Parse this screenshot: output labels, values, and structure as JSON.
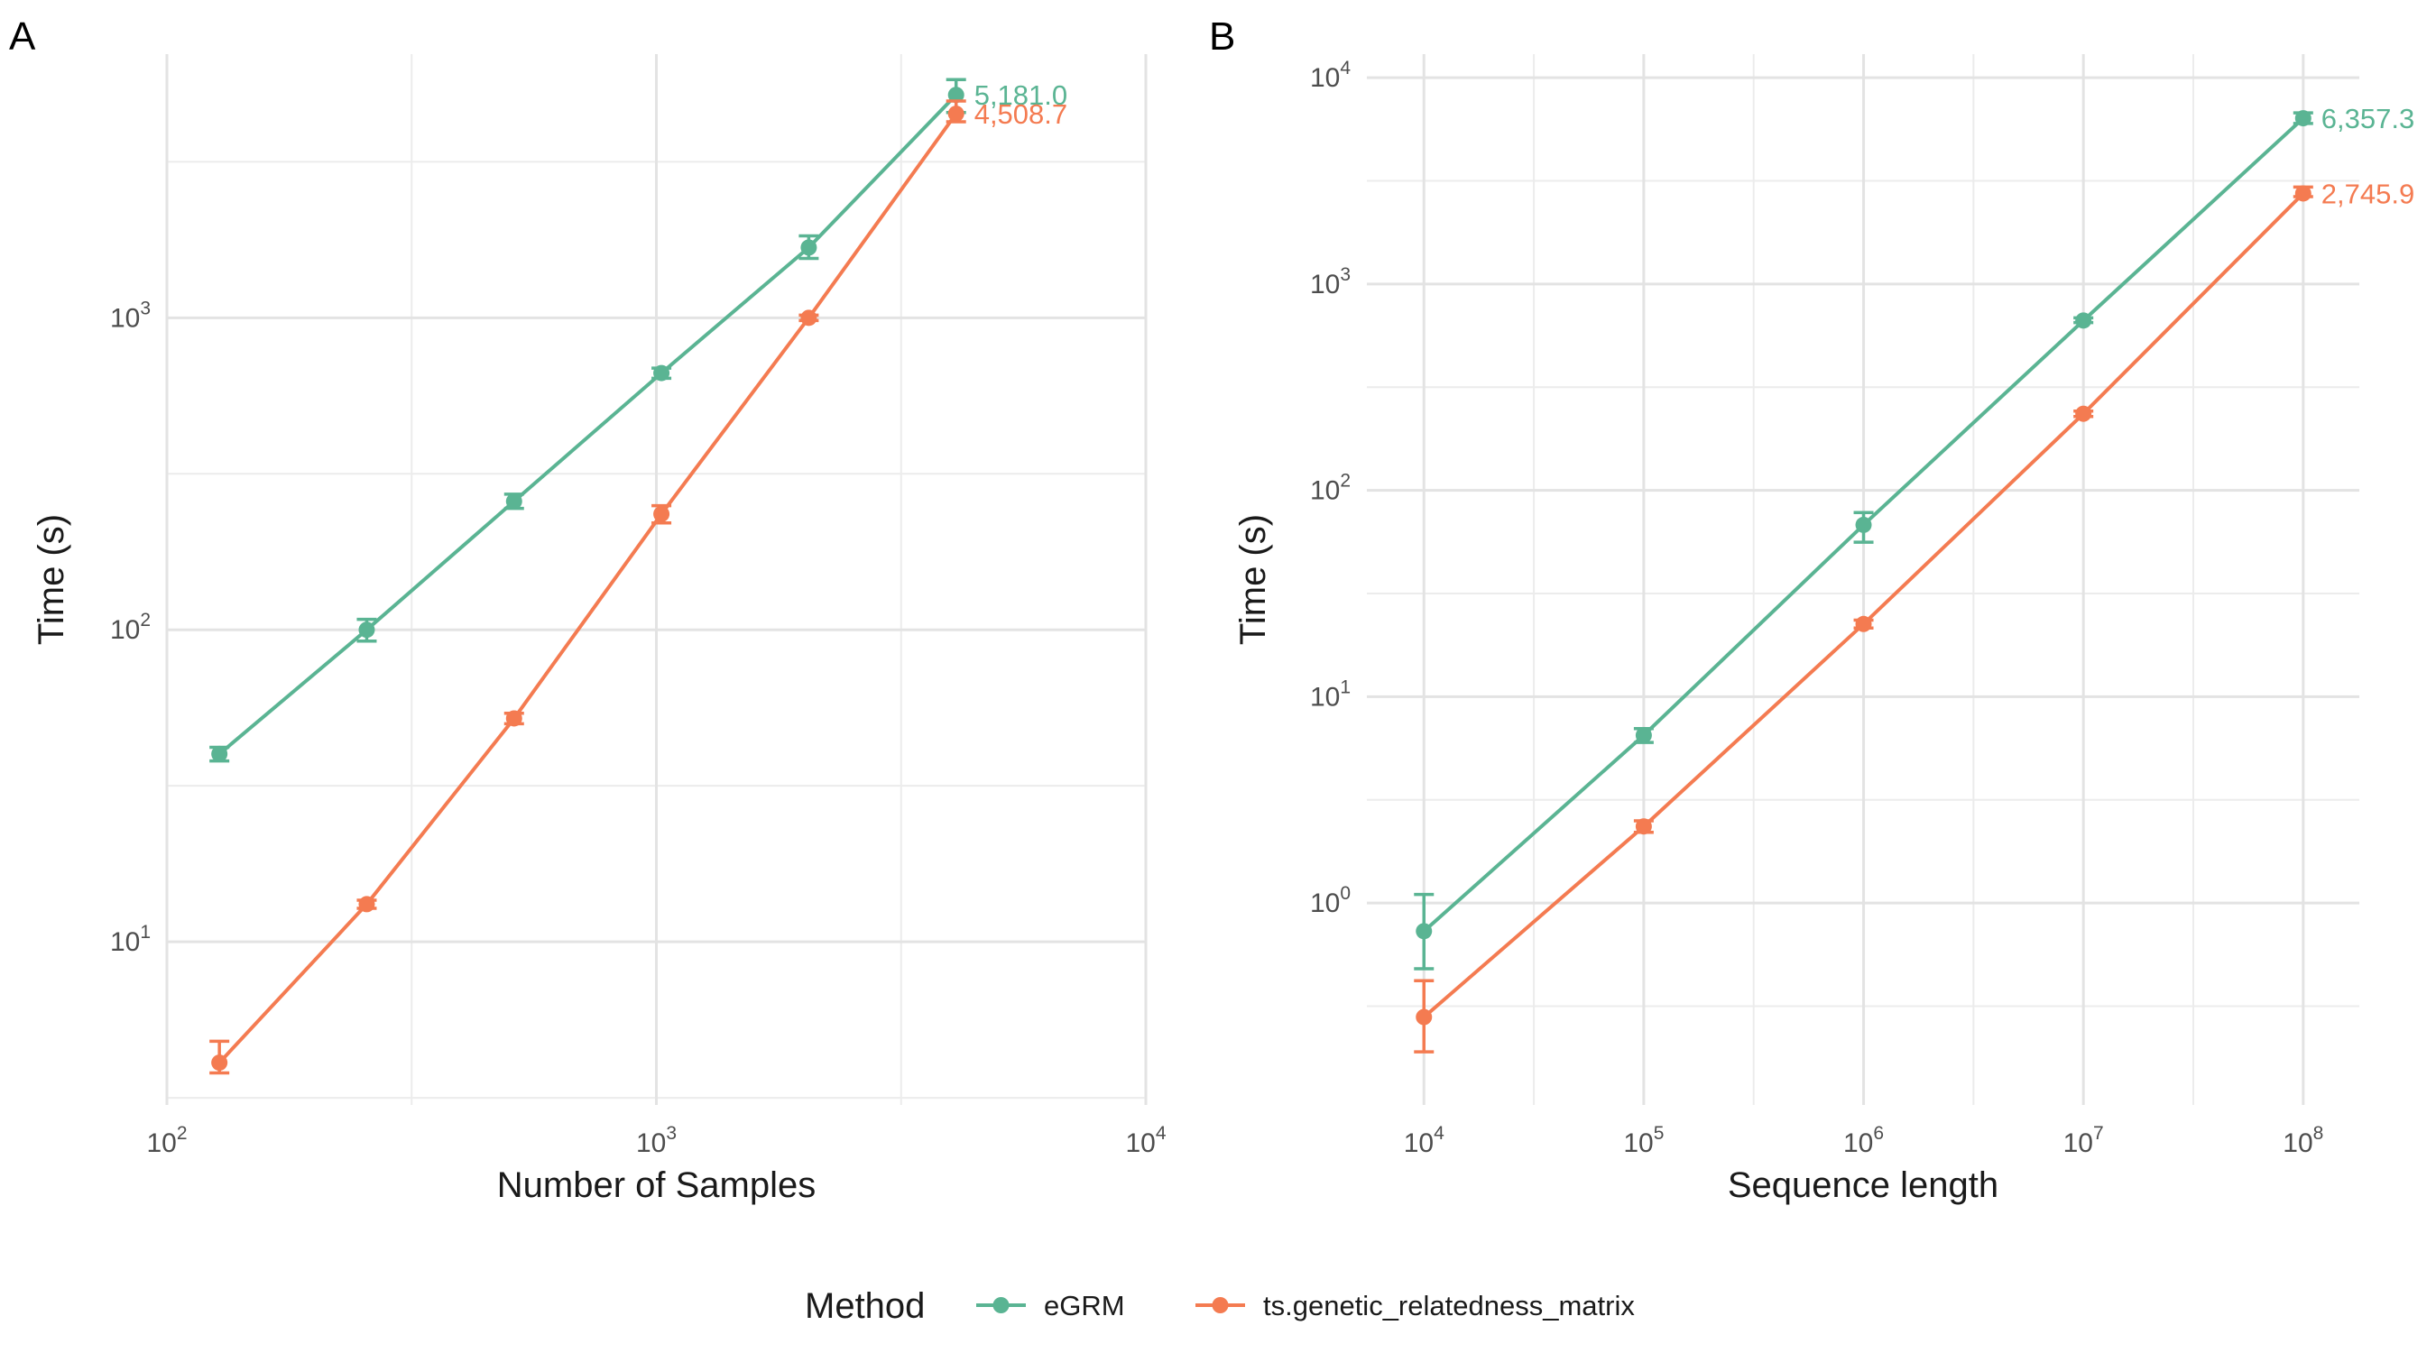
{
  "legend": {
    "title": "Method",
    "position": "bottom",
    "entries": [
      {
        "label": "eGRM",
        "color": "#5AB493"
      },
      {
        "label": "ts.genetic_relatedness_matrix",
        "color": "#F47B51"
      }
    ]
  },
  "chart_data": [
    {
      "type": "line",
      "panel": "A",
      "xlabel": "Number of Samples",
      "ylabel": "Time (s)",
      "xscale": "log10",
      "yscale": "log10",
      "xlim": [
        100,
        10000
      ],
      "ylim": [
        3.0,
        7000
      ],
      "xticks": [
        {
          "value": 100,
          "exp": "2"
        },
        {
          "value": 1000,
          "exp": "3"
        },
        {
          "value": 10000,
          "exp": "4"
        }
      ],
      "yticks": [
        {
          "value": 10,
          "exp": "1"
        },
        {
          "value": 100,
          "exp": "2"
        },
        {
          "value": 1000,
          "exp": "3"
        }
      ],
      "grid": true,
      "series": [
        {
          "name": "eGRM",
          "color": "#5AB493",
          "x": [
            128,
            256,
            512,
            1024,
            2048,
            4096
          ],
          "y": [
            40,
            100,
            258,
            665,
            1680,
            5181.0
          ],
          "err_low": [
            38,
            92,
            245,
            640,
            1550,
            4550
          ],
          "err_high": [
            42,
            108,
            272,
            690,
            1830,
            5800
          ],
          "end_label": "5,181.0"
        },
        {
          "name": "ts.genetic_relatedness_matrix",
          "color": "#F47B51",
          "x": [
            128,
            256,
            512,
            1024,
            2048,
            4096
          ],
          "y": [
            4.1,
            13.2,
            52,
            235,
            1000,
            4508.7
          ],
          "err_low": [
            3.8,
            12.8,
            50,
            220,
            980,
            4250
          ],
          "err_high": [
            4.8,
            13.6,
            54,
            250,
            1020,
            4950
          ],
          "end_label": "4,508.7"
        }
      ]
    },
    {
      "type": "line",
      "panel": "B",
      "xlabel": "Sequence length",
      "ylabel": "Time (s)",
      "xscale": "log10",
      "yscale": "log10",
      "xlim": [
        5500,
        180000000
      ],
      "ylim": [
        0.105,
        13000
      ],
      "xticks": [
        {
          "value": 10000,
          "exp": "4"
        },
        {
          "value": 100000,
          "exp": "5"
        },
        {
          "value": 1000000,
          "exp": "6"
        },
        {
          "value": 10000000,
          "exp": "7"
        },
        {
          "value": 100000000,
          "exp": "8"
        }
      ],
      "yticks": [
        {
          "value": 1,
          "exp": "0"
        },
        {
          "value": 10,
          "exp": "1"
        },
        {
          "value": 100,
          "exp": "2"
        },
        {
          "value": 1000,
          "exp": "3"
        },
        {
          "value": 10000,
          "exp": "4"
        }
      ],
      "grid": true,
      "series": [
        {
          "name": "eGRM",
          "color": "#5AB493",
          "x": [
            10000,
            100000,
            1000000,
            10000000,
            100000000
          ],
          "y": [
            0.73,
            6.5,
            68,
            665,
            6357.3
          ],
          "err_low": [
            0.48,
            6.0,
            56,
            650,
            6000
          ],
          "err_high": [
            1.1,
            7.0,
            78,
            685,
            6750
          ],
          "end_label": "6,357.3"
        },
        {
          "name": "ts.genetic_relatedness_matrix",
          "color": "#F47B51",
          "x": [
            10000,
            100000,
            1000000,
            10000000,
            100000000
          ],
          "y": [
            0.28,
            2.35,
            22.5,
            235,
            2745.9
          ],
          "err_low": [
            0.19,
            2.2,
            21.5,
            228,
            2650
          ],
          "err_high": [
            0.42,
            2.5,
            23.5,
            242,
            2950
          ],
          "end_label": "2,745.9"
        }
      ]
    }
  ]
}
